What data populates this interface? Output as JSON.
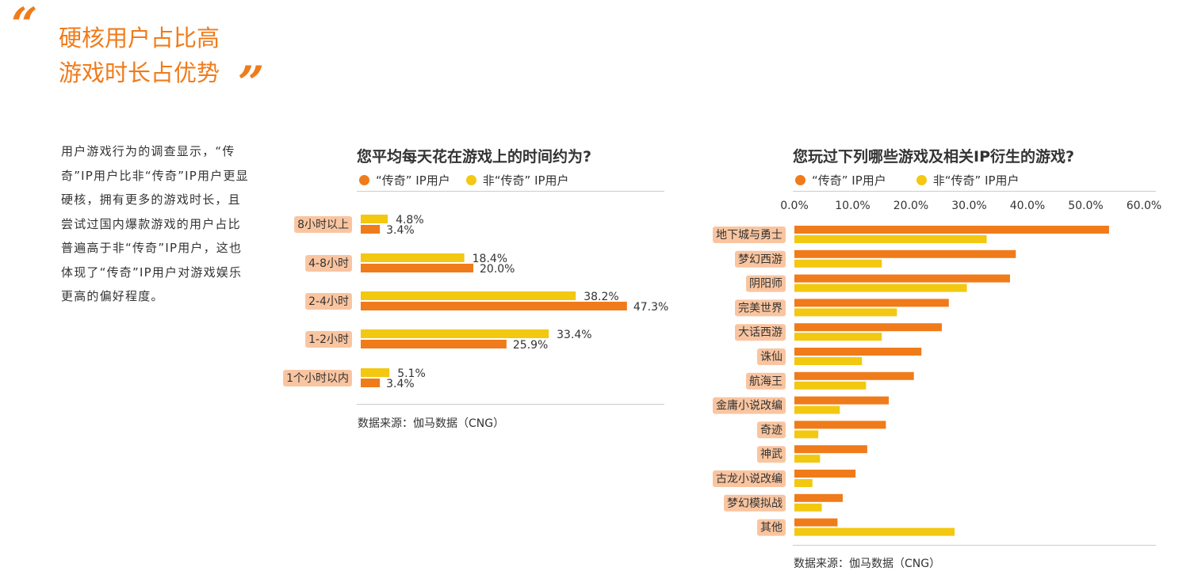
{
  "header": {
    "quote_open": "“",
    "quote_close": "”",
    "headline_line1": "硬核用户占比高",
    "headline_line2": "游戏时长占优势"
  },
  "intro_text": "用户游戏行为的调查显示，“传奇”IP用户比非“传奇”IP用户更显硬核，拥有更多的游戏时长，且尝试过国内爆款游戏的用户占比普遍高于非“传奇”IP用户，这也体现了“传奇”IP用户对游戏娱乐更高的偏好程度。",
  "colors": {
    "accent": "#f07b1a",
    "series_legend": "#f07b1a",
    "series_non_legend": "#f2c811",
    "label_bg": "#f9c5a0"
  },
  "chart_data": [
    {
      "type": "bar",
      "orientation": "horizontal",
      "title": "您平均每天花在游戏上的时间约为?",
      "legend": [
        "“传奇” IP用户",
        "非“传奇” IP用户"
      ],
      "legend_placement": "top-left",
      "categories": [
        "8小时以上",
        "4-8小时",
        "2-4小时",
        "1-2小时",
        "1个小时以内"
      ],
      "series": [
        {
          "name": "非“传奇” IP用户",
          "color": "#f2c811",
          "values": [
            4.8,
            18.4,
            38.2,
            33.4,
            5.1
          ],
          "labels": [
            "4.8%",
            "18.4%",
            "38.2%",
            "33.4%",
            "5.1%"
          ]
        },
        {
          "name": "“传奇” IP用户",
          "color": "#f07b1a",
          "values": [
            3.4,
            20.0,
            47.3,
            25.9,
            3.4
          ],
          "labels": [
            "3.4%",
            "20.0%",
            "47.3%",
            "25.9%",
            "3.4%"
          ]
        }
      ],
      "source": "数据来源：伽马数据（CNG）"
    },
    {
      "type": "bar",
      "orientation": "horizontal",
      "title": "您玩过下列哪些游戏及相关IP衍生的游戏?",
      "legend": [
        "“传奇” IP用户",
        "非“传奇” IP用户"
      ],
      "legend_placement": "top-left",
      "x_ticks": [
        "0.0%",
        "10.0%",
        "20.0%",
        "30.0%",
        "40.0%",
        "50.0%",
        "60.0%"
      ],
      "xlim": [
        0,
        60
      ],
      "grid": false,
      "categories": [
        "地下城与勇士",
        "梦幻西游",
        "阴阳师",
        "完美世界",
        "大话西游",
        "诛仙",
        "航海王",
        "金庸小说改编",
        "奇迹",
        "神武",
        "古龙小说改编",
        "梦幻模拟战",
        "其他"
      ],
      "series": [
        {
          "name": "“传奇” IP用户",
          "color": "#f07b1a",
          "values": [
            54.0,
            38.0,
            37.0,
            26.5,
            25.3,
            21.8,
            20.5,
            16.2,
            15.7,
            12.5,
            10.5,
            8.3,
            7.4
          ]
        },
        {
          "name": "非“传奇” IP用户",
          "color": "#f2c811",
          "values": [
            33.0,
            15.0,
            29.6,
            17.6,
            15.0,
            11.6,
            12.3,
            7.8,
            4.1,
            4.4,
            3.1,
            4.7,
            27.5
          ]
        }
      ],
      "source": "数据来源：伽马数据（CNG）"
    }
  ]
}
